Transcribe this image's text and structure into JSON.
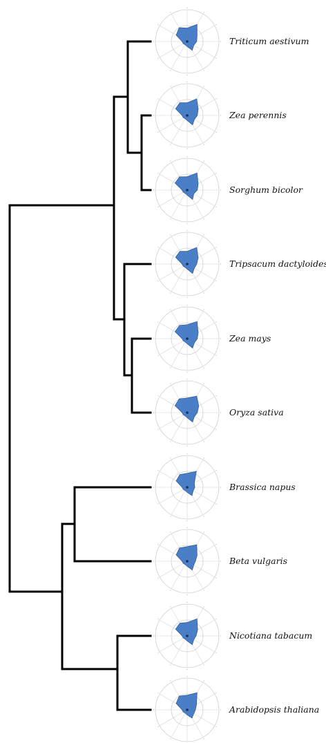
{
  "figure": {
    "leaf_color": "#4a7ec6",
    "leaf_stroke": "#2f5f9e",
    "tree_color": "#000000",
    "taxa": [
      {
        "id": "triticum",
        "name": "Triticum aestivum",
        "profile": [
          0.42,
          0.62,
          0.36,
          0.3,
          0.24,
          0.32,
          0.16,
          0.12,
          0.14,
          0.16,
          0.4,
          0.5
        ]
      },
      {
        "id": "zea-perennis",
        "name": "Zea perennis",
        "profile": [
          0.4,
          0.6,
          0.4,
          0.32,
          0.26,
          0.34,
          0.16,
          0.12,
          0.14,
          0.16,
          0.42,
          0.46
        ]
      },
      {
        "id": "sorghum",
        "name": "Sorghum bicolor",
        "profile": [
          0.42,
          0.62,
          0.4,
          0.32,
          0.24,
          0.34,
          0.16,
          0.12,
          0.14,
          0.16,
          0.44,
          0.48
        ]
      },
      {
        "id": "tripsacum",
        "name": "Tripsacum dactyloides",
        "profile": [
          0.4,
          0.6,
          0.4,
          0.3,
          0.26,
          0.34,
          0.16,
          0.12,
          0.14,
          0.16,
          0.42,
          0.46
        ]
      },
      {
        "id": "zea-mays",
        "name": "Zea mays",
        "profile": [
          0.44,
          0.62,
          0.4,
          0.32,
          0.26,
          0.34,
          0.16,
          0.12,
          0.14,
          0.16,
          0.44,
          0.48
        ]
      },
      {
        "id": "oryza",
        "name": "Oryza sativa",
        "profile": [
          0.46,
          0.6,
          0.42,
          0.32,
          0.26,
          0.34,
          0.16,
          0.12,
          0.14,
          0.16,
          0.44,
          0.5
        ]
      },
      {
        "id": "brassica",
        "name": "Brassica napus",
        "profile": [
          0.44,
          0.58,
          0.26,
          0.24,
          0.22,
          0.3,
          0.16,
          0.12,
          0.14,
          0.16,
          0.4,
          0.46
        ]
      },
      {
        "id": "beta",
        "name": "Beta vulgaris",
        "profile": [
          0.46,
          0.6,
          0.36,
          0.26,
          0.24,
          0.32,
          0.16,
          0.12,
          0.14,
          0.16,
          0.4,
          0.48
        ]
      },
      {
        "id": "nicotiana",
        "name": "Nicotiana tabacum",
        "profile": [
          0.42,
          0.62,
          0.38,
          0.28,
          0.24,
          0.32,
          0.16,
          0.12,
          0.14,
          0.16,
          0.42,
          0.46
        ]
      },
      {
        "id": "arabidopsis",
        "name": "Arabidopsis thaliana",
        "profile": [
          0.46,
          0.62,
          0.34,
          0.26,
          0.24,
          0.3,
          0.16,
          0.12,
          0.14,
          0.16,
          0.4,
          0.5
        ]
      }
    ]
  }
}
